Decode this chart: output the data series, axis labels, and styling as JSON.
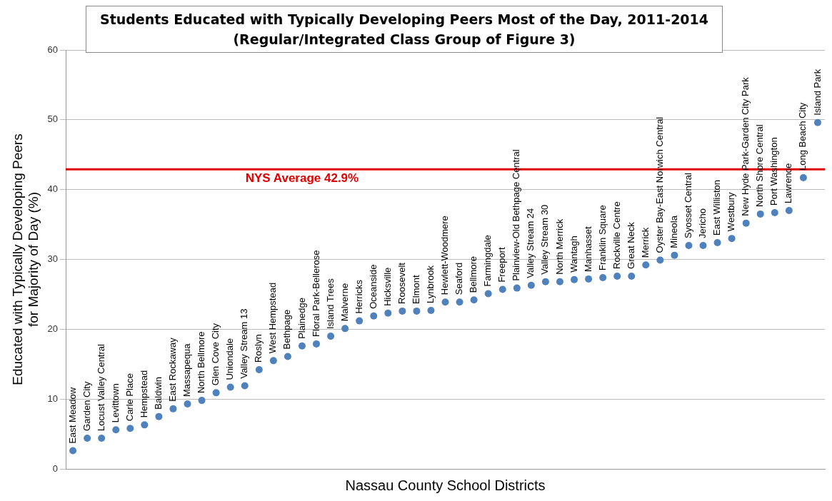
{
  "chart_data": {
    "type": "scatter",
    "title": "Students Educated with Typically Developing Peers Most of the Day, 2011-2014",
    "subtitle": "(Regular/Integrated Class Group of Figure 3)",
    "xlabel": "Nassau County School Districts",
    "ylabel": "Educated with Typically Developing Peers for Majority of Day (%)",
    "categories": [
      "East Meadow",
      "Garden City",
      "Locust Valley Central",
      "Levittown",
      "Carle Place",
      "Hempstead",
      "Baldwin",
      "East Rockaway",
      "Massapequa",
      "North Bellmore",
      "Glen Cove City",
      "Uniondale",
      "Valley Stream 13",
      "Roslyn",
      "West Hempstead",
      "Bethpage",
      "Plainedge",
      "Floral Park-Bellerose",
      "Island Trees",
      "Malverne",
      "Herricks",
      "Oceanside",
      "Hicksville",
      "Roosevelt",
      "Elmont",
      "Lynbrook",
      "Hewlett-Woodmere",
      "Seaford",
      "Bellmore",
      "Farmingdale",
      "Freeport",
      "Plainview-Old Bethpage Central",
      "Valley Stream 24",
      "Valley Stream 30",
      "North Merrick",
      "Wantagh",
      "Manhasset",
      "Franklin Square",
      "Rockville Centre",
      "Great Neck",
      "Merrick",
      "Oyster Bay-East Norwich Central",
      "Mineola",
      "Syosset Central",
      "Jericho",
      "East Williston",
      "Westbury",
      "New Hyde Park-Garden City Park",
      "North Shore Central",
      "Port Washington",
      "Lawrence",
      "Long Beach City",
      "Island Park"
    ],
    "series": [
      {
        "color": "#4f81bd",
        "values": [
          2.6,
          4.4,
          4.4,
          5.6,
          5.8,
          6.3,
          7.5,
          8.6,
          9.3,
          9.8,
          10.9,
          11.7,
          11.9,
          14.2,
          15.5,
          16.1,
          17.6,
          17.9,
          19.0,
          20.1,
          21.2,
          21.9,
          22.3,
          22.6,
          22.6,
          22.7,
          23.9,
          23.9,
          24.2,
          25.1,
          25.7,
          25.9,
          26.3,
          26.8,
          26.8,
          27.1,
          27.2,
          27.4,
          27.6,
          27.6,
          29.2,
          29.9,
          30.6,
          32.0,
          32.0,
          32.4,
          33.0,
          35.2,
          36.5,
          36.7,
          37.0,
          41.7,
          49.6
        ]
      }
    ],
    "ylim": [
      0,
      60
    ],
    "yticks": [
      0,
      10,
      20,
      30,
      40,
      50,
      60
    ],
    "ref_lines": [
      {
        "axis": "y",
        "value": 42.9,
        "label": "NYS Average 42.9%",
        "color": "#e00000"
      }
    ],
    "grid": "y",
    "legend": false,
    "marker": "circle"
  }
}
